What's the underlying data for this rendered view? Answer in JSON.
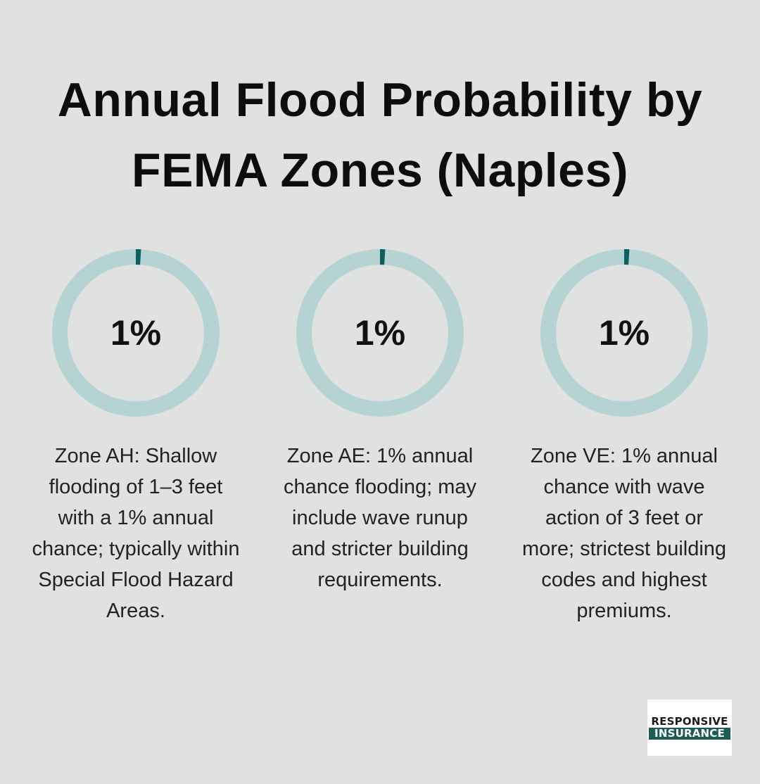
{
  "title": "Annual Flood Probability by FEMA Zones (Naples)",
  "chart_data": {
    "type": "donut",
    "title": "Annual Flood Probability by FEMA Zones (Naples)",
    "items": [
      {
        "value": 1,
        "label": "1%",
        "description": "Zone AH: Shallow flooding of 1–3 feet with a 1% annual chance; typically within Special Flood Hazard Areas."
      },
      {
        "value": 1,
        "label": "1%",
        "description": "Zone AE: 1% annual chance flooding; may include wave runup and stricter building requirements."
      },
      {
        "value": 1,
        "label": "1%",
        "description": "Zone VE: 1% annual chance with wave action of 3 feet or more; strictest building codes and highest premiums."
      }
    ],
    "max": 100,
    "colors": {
      "track": "#b6d3d3",
      "fill": "#0f5e5f"
    }
  },
  "logo": {
    "line1": "RESPONSIVE",
    "line2": "INSURANCE"
  }
}
